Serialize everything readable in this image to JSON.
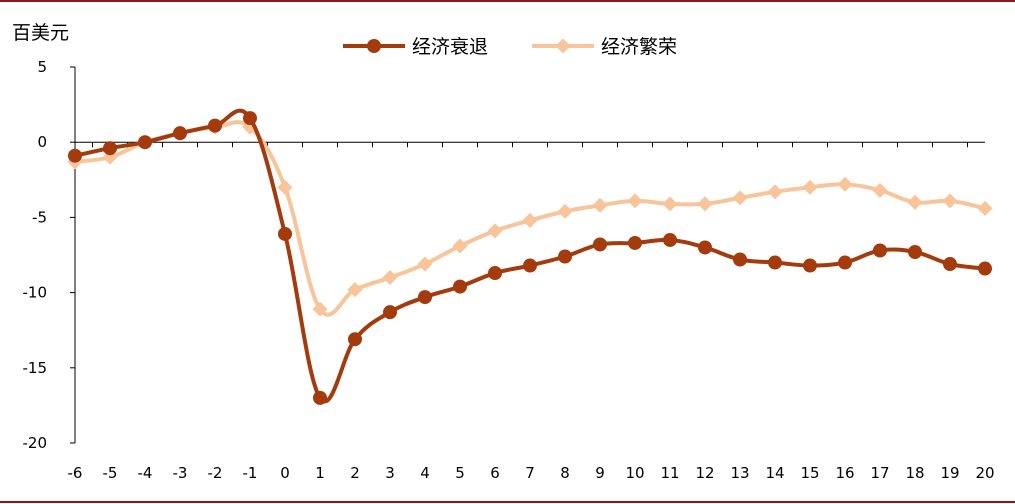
{
  "chart_data": {
    "type": "line",
    "ylabel": "百美元",
    "x": [
      -6,
      -5,
      -4,
      -3,
      -2,
      -1,
      0,
      1,
      2,
      3,
      4,
      5,
      6,
      7,
      8,
      9,
      10,
      11,
      12,
      13,
      14,
      15,
      16,
      17,
      18,
      19,
      20
    ],
    "ylim": [
      -20,
      5
    ],
    "yticks": [
      5,
      0,
      -5,
      -10,
      -15,
      -20
    ],
    "grid": false,
    "legend_position": "top-center",
    "series": [
      {
        "name": "经济衰退",
        "color": "#A33B0C",
        "marker": "circle",
        "values": [
          -0.9,
          -0.4,
          0.0,
          0.6,
          1.1,
          1.6,
          -6.1,
          -17.0,
          -13.1,
          -11.3,
          -10.3,
          -9.6,
          -8.7,
          -8.2,
          -7.6,
          -6.8,
          -6.7,
          -6.5,
          -7.0,
          -7.8,
          -8.0,
          -8.2,
          -8.0,
          -7.2,
          -7.3,
          -8.1,
          -8.4
        ]
      },
      {
        "name": "经济繁荣",
        "color": "#F8C49A",
        "marker": "diamond",
        "values": [
          -1.3,
          -1.0,
          0.0,
          0.6,
          1.0,
          1.0,
          -3.0,
          -11.1,
          -9.8,
          -9.0,
          -8.1,
          -6.9,
          -5.9,
          -5.2,
          -4.6,
          -4.2,
          -3.9,
          -4.1,
          -4.1,
          -3.7,
          -3.3,
          -3.0,
          -2.8,
          -3.2,
          -4.0,
          -3.9,
          -4.4
        ]
      }
    ]
  }
}
